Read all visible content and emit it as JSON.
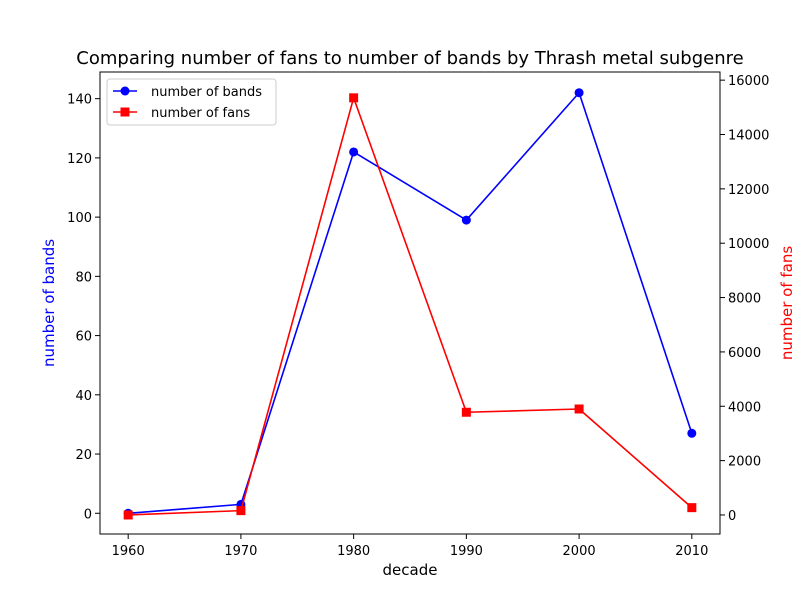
{
  "chart_data": {
    "type": "line",
    "title": "Comparing number of fans to number of bands by Thrash metal subgenre",
    "xlabel": "decade",
    "ylabel": "number of bands",
    "ylabel_right": "number of fans",
    "x": [
      1960,
      1970,
      1980,
      1990,
      2000,
      2010
    ],
    "xlim": [
      1957.5,
      2012.5
    ],
    "ylim": [
      -7,
      149
    ],
    "ylim_right": [
      -700,
      16300
    ],
    "x_ticks": [
      1960,
      1970,
      1980,
      1990,
      2000,
      2010
    ],
    "y_ticks": [
      0,
      20,
      40,
      60,
      80,
      100,
      120,
      140
    ],
    "y_ticks_right": [
      0,
      2000,
      4000,
      6000,
      8000,
      10000,
      12000,
      14000,
      16000
    ],
    "grid": false,
    "legend_position": "top-left",
    "series": [
      {
        "name": "number of bands",
        "axis": "left",
        "color": "#0000ff",
        "marker": "circle",
        "values": [
          0,
          3,
          122,
          99,
          142,
          27
        ]
      },
      {
        "name": "number of fans",
        "axis": "right",
        "color": "#ff0000",
        "marker": "square",
        "values": [
          0,
          160,
          15350,
          3780,
          3900,
          270
        ]
      }
    ]
  }
}
